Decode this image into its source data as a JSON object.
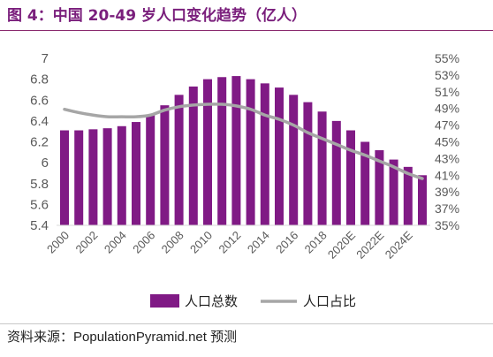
{
  "source": "资料来源：PopulationPyramid.net 预测",
  "chart_data": {
    "type": "bar",
    "title": "图 4：中国 20-49 岁人口变化趋势（亿人）",
    "x": [
      2000,
      2001,
      2002,
      2003,
      2004,
      2005,
      2006,
      2007,
      2008,
      2009,
      2010,
      2011,
      2012,
      2013,
      2014,
      2015,
      2016,
      2017,
      2018,
      2019,
      2020,
      2021,
      2022,
      2023,
      2024,
      2025
    ],
    "x_tick_values": [
      2000,
      2002,
      2004,
      2006,
      2008,
      2010,
      2012,
      2014,
      2016,
      2018,
      2020,
      2022,
      2024
    ],
    "x_tick_labels": [
      "2000",
      "2002",
      "2004",
      "2006",
      "2008",
      "2010",
      "2012",
      "2014",
      "2016",
      "2018",
      "2020E",
      "2022E",
      "2024E"
    ],
    "series": [
      {
        "name": "人口总数",
        "type": "bar",
        "axis": "left",
        "color": "#801a85",
        "values": [
          6.31,
          6.31,
          6.32,
          6.33,
          6.35,
          6.39,
          6.46,
          6.55,
          6.65,
          6.73,
          6.8,
          6.82,
          6.83,
          6.8,
          6.76,
          6.72,
          6.65,
          6.58,
          6.49,
          6.4,
          6.31,
          6.2,
          6.12,
          6.03,
          5.96,
          5.88
        ]
      },
      {
        "name": "人口占比",
        "type": "line",
        "axis": "right",
        "color": "#a6a6a6",
        "values": [
          48.9,
          48.5,
          48.2,
          48.0,
          48.0,
          48.0,
          48.2,
          48.8,
          49.2,
          49.4,
          49.5,
          49.5,
          49.3,
          48.9,
          48.2,
          47.7,
          47.0,
          46.1,
          45.4,
          44.7,
          44.0,
          43.4,
          42.7,
          42.0,
          41.2,
          40.6
        ]
      }
    ],
    "y_left": {
      "ylim": [
        5.4,
        7
      ],
      "ticks": [
        "5.4",
        "5.6",
        "5.8",
        "6",
        "6.2",
        "6.4",
        "6.6",
        "6.8",
        "7"
      ]
    },
    "y_right": {
      "ylim": [
        35,
        55
      ],
      "ticks": [
        "35%",
        "37%",
        "39%",
        "41%",
        "43%",
        "45%",
        "47%",
        "49%",
        "51%",
        "53%",
        "55%"
      ]
    },
    "grid": false,
    "legend": "bottom"
  }
}
